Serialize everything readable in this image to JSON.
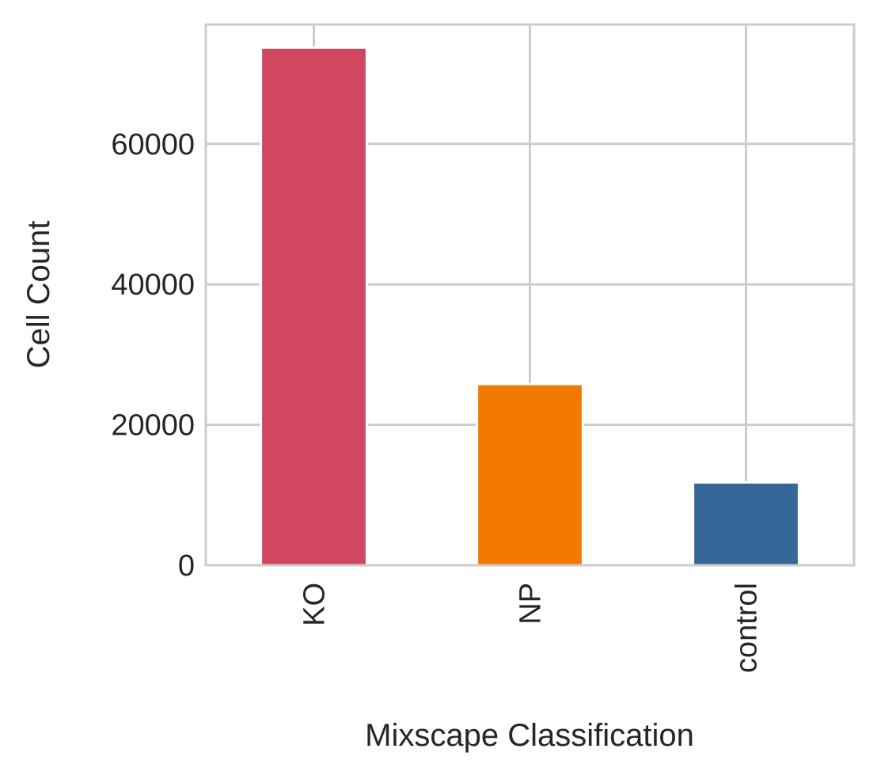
{
  "chart_data": {
    "type": "bar",
    "title": "",
    "xlabel": "Mixscape Classification",
    "ylabel": "Cell Count",
    "categories": [
      "KO",
      "NP",
      "control"
    ],
    "values": [
      73700,
      25800,
      11800
    ],
    "bar_colors": [
      "#d1475f",
      "#f27a00",
      "#366798"
    ],
    "ylim": [
      0,
      77000
    ],
    "yticks": [
      0,
      20000,
      40000,
      60000
    ],
    "ytick_labels": [
      "0",
      "20000",
      "40000",
      "60000"
    ],
    "grid": true,
    "legend": "none"
  },
  "colors": {
    "grid": "#cccccc",
    "spine": "#cccccc",
    "text": "#262626"
  }
}
